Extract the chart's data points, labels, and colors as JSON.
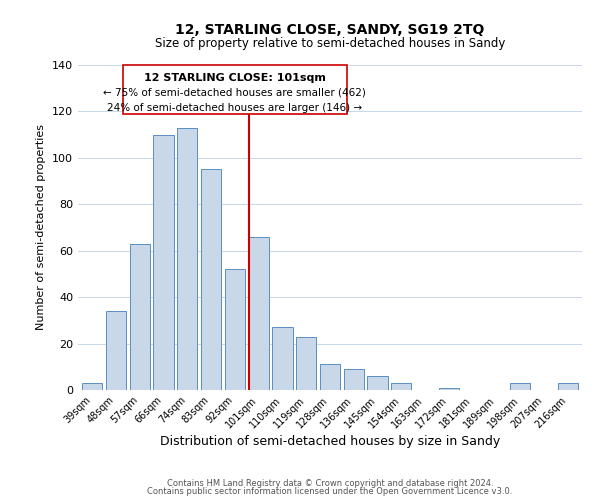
{
  "title": "12, STARLING CLOSE, SANDY, SG19 2TQ",
  "subtitle": "Size of property relative to semi-detached houses in Sandy",
  "xlabel": "Distribution of semi-detached houses by size in Sandy",
  "ylabel": "Number of semi-detached properties",
  "categories": [
    "39sqm",
    "48sqm",
    "57sqm",
    "66sqm",
    "74sqm",
    "83sqm",
    "92sqm",
    "101sqm",
    "110sqm",
    "119sqm",
    "128sqm",
    "136sqm",
    "145sqm",
    "154sqm",
    "163sqm",
    "172sqm",
    "181sqm",
    "189sqm",
    "198sqm",
    "207sqm",
    "216sqm"
  ],
  "values": [
    3,
    34,
    63,
    110,
    113,
    95,
    52,
    66,
    27,
    23,
    11,
    9,
    6,
    3,
    0,
    1,
    0,
    0,
    3,
    0,
    3
  ],
  "bar_color": "#c8d8e8",
  "bar_edge_color": "#5a8fc0",
  "highlight_index": 7,
  "highlight_color": "#cc0000",
  "ylim": [
    0,
    140
  ],
  "yticks": [
    0,
    20,
    40,
    60,
    80,
    100,
    120,
    140
  ],
  "annotation_title": "12 STARLING CLOSE: 101sqm",
  "annotation_line1": "← 75% of semi-detached houses are smaller (462)",
  "annotation_line2": "24% of semi-detached houses are larger (146) →",
  "annotation_box_color": "#ffffff",
  "annotation_box_edge": "#cc0000",
  "footer1": "Contains HM Land Registry data © Crown copyright and database right 2024.",
  "footer2": "Contains public sector information licensed under the Open Government Licence v3.0."
}
